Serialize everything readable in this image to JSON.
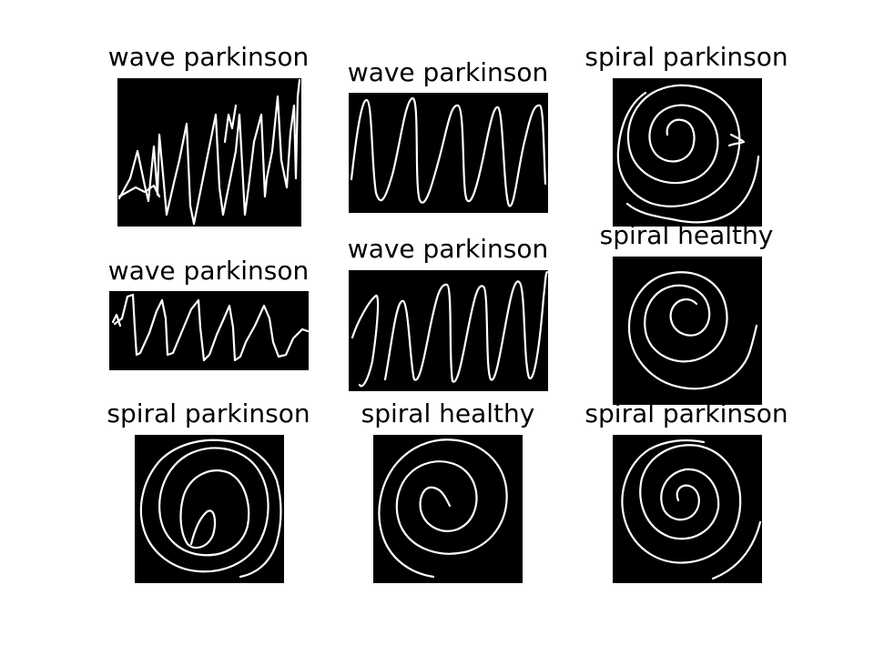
{
  "figure": {
    "background_color": "#ffffff",
    "panel_color": "#000000",
    "stroke_color": "#ffffff"
  },
  "panels": [
    {
      "label": "wave parkinson",
      "drawing": "wave"
    },
    {
      "label": "wave parkinson",
      "drawing": "wave"
    },
    {
      "label": "spiral parkinson",
      "drawing": "spiral"
    },
    {
      "label": "wave parkinson",
      "drawing": "wave"
    },
    {
      "label": "wave parkinson",
      "drawing": "wave"
    },
    {
      "label": "spiral healthy",
      "drawing": "spiral"
    },
    {
      "label": "spiral parkinson",
      "drawing": "spiral"
    },
    {
      "label": "spiral healthy",
      "drawing": "spiral"
    },
    {
      "label": "spiral parkinson",
      "drawing": "spiral"
    }
  ]
}
